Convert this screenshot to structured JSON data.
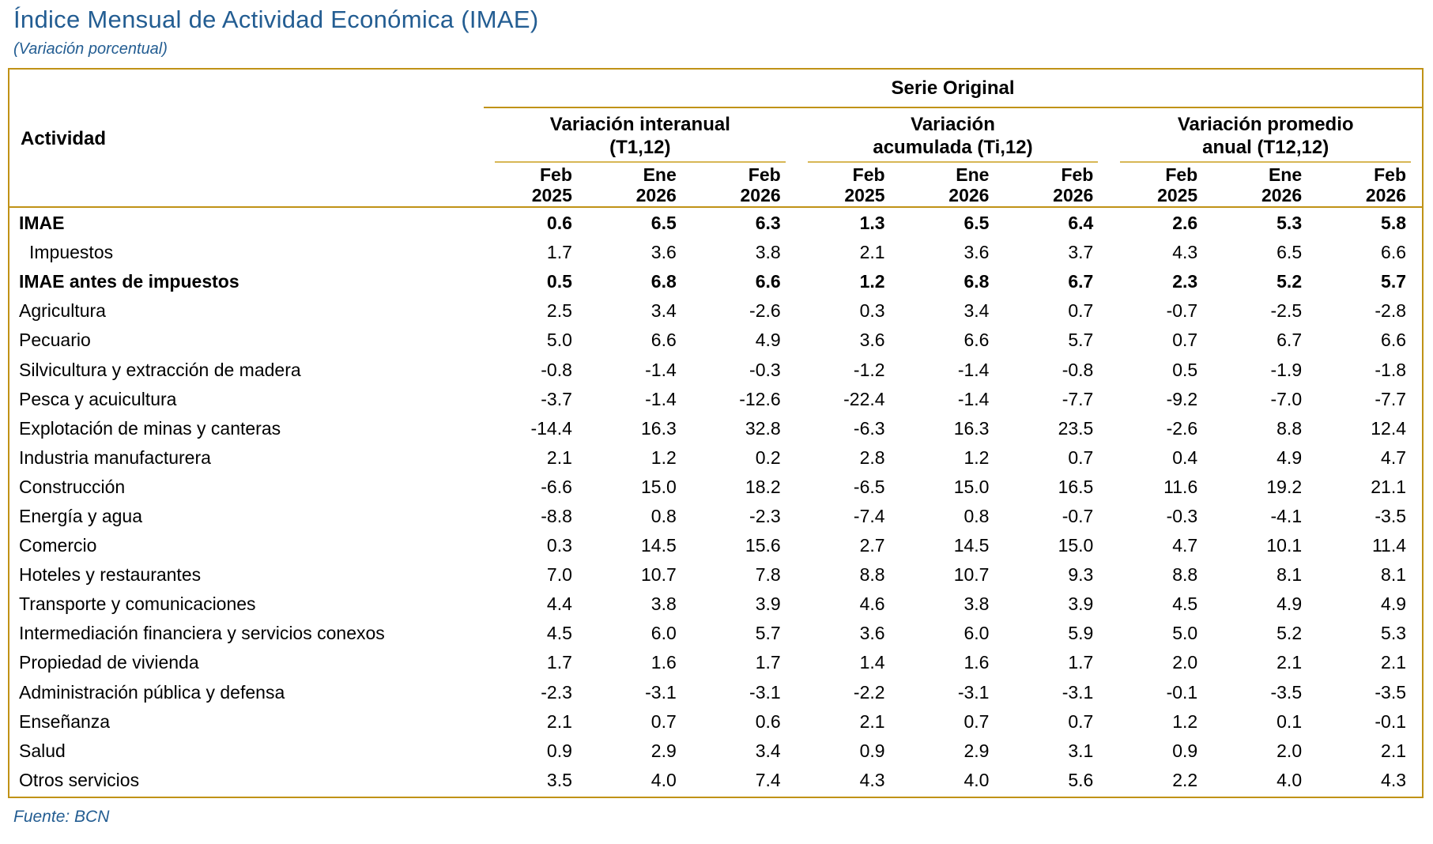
{
  "page": {
    "title": "Índice Mensual de Actividad Económica (IMAE)",
    "subtitle": "(Variación porcentual)",
    "source": "Fuente: BCN"
  },
  "colors": {
    "accent_blue": "#235D92",
    "border_gold": "#C09216",
    "rule_gold_light": "#D7B755"
  },
  "table": {
    "activity_header": "Actividad",
    "series_header": "Serie Original",
    "column_groups": [
      {
        "lines": [
          "Variación interanual",
          "(T1,12)"
        ]
      },
      {
        "lines": [
          "Variación",
          "acumulada (Ti,12)"
        ]
      },
      {
        "lines": [
          "Variación promedio",
          "anual (T12,12)"
        ]
      }
    ],
    "period_headers": [
      {
        "month": "Feb",
        "year": "2025"
      },
      {
        "month": "Ene",
        "year": "2026"
      },
      {
        "month": "Feb",
        "year": "2026"
      },
      {
        "month": "Feb",
        "year": "2025"
      },
      {
        "month": "Ene",
        "year": "2026"
      },
      {
        "month": "Feb",
        "year": "2026"
      },
      {
        "month": "Feb",
        "year": "2025"
      },
      {
        "month": "Ene",
        "year": "2026"
      },
      {
        "month": "Feb",
        "year": "2026"
      }
    ],
    "rows": [
      {
        "label": "IMAE",
        "bold": true,
        "indent": false,
        "values": [
          "0.6",
          "6.5",
          "6.3",
          "1.3",
          "6.5",
          "6.4",
          "2.6",
          "5.3",
          "5.8"
        ]
      },
      {
        "label": "Impuestos",
        "bold": false,
        "indent": true,
        "values": [
          "1.7",
          "3.6",
          "3.8",
          "2.1",
          "3.6",
          "3.7",
          "4.3",
          "6.5",
          "6.6"
        ]
      },
      {
        "label": "IMAE antes de impuestos",
        "bold": true,
        "indent": false,
        "values": [
          "0.5",
          "6.8",
          "6.6",
          "1.2",
          "6.8",
          "6.7",
          "2.3",
          "5.2",
          "5.7"
        ]
      },
      {
        "label": "Agricultura",
        "bold": false,
        "indent": false,
        "values": [
          "2.5",
          "3.4",
          "-2.6",
          "0.3",
          "3.4",
          "0.7",
          "-0.7",
          "-2.5",
          "-2.8"
        ]
      },
      {
        "label": "Pecuario",
        "bold": false,
        "indent": false,
        "values": [
          "5.0",
          "6.6",
          "4.9",
          "3.6",
          "6.6",
          "5.7",
          "0.7",
          "6.7",
          "6.6"
        ]
      },
      {
        "label": "Silvicultura y extracción de madera",
        "bold": false,
        "indent": false,
        "values": [
          "-0.8",
          "-1.4",
          "-0.3",
          "-1.2",
          "-1.4",
          "-0.8",
          "0.5",
          "-1.9",
          "-1.8"
        ]
      },
      {
        "label": "Pesca y acuicultura",
        "bold": false,
        "indent": false,
        "values": [
          "-3.7",
          "-1.4",
          "-12.6",
          "-22.4",
          "-1.4",
          "-7.7",
          "-9.2",
          "-7.0",
          "-7.7"
        ]
      },
      {
        "label": "Explotación de minas y canteras",
        "bold": false,
        "indent": false,
        "values": [
          "-14.4",
          "16.3",
          "32.8",
          "-6.3",
          "16.3",
          "23.5",
          "-2.6",
          "8.8",
          "12.4"
        ]
      },
      {
        "label": "Industria manufacturera",
        "bold": false,
        "indent": false,
        "values": [
          "2.1",
          "1.2",
          "0.2",
          "2.8",
          "1.2",
          "0.7",
          "0.4",
          "4.9",
          "4.7"
        ]
      },
      {
        "label": "Construcción",
        "bold": false,
        "indent": false,
        "values": [
          "-6.6",
          "15.0",
          "18.2",
          "-6.5",
          "15.0",
          "16.5",
          "11.6",
          "19.2",
          "21.1"
        ]
      },
      {
        "label": "Energía y agua",
        "bold": false,
        "indent": false,
        "values": [
          "-8.8",
          "0.8",
          "-2.3",
          "-7.4",
          "0.8",
          "-0.7",
          "-0.3",
          "-4.1",
          "-3.5"
        ]
      },
      {
        "label": "Comercio",
        "bold": false,
        "indent": false,
        "values": [
          "0.3",
          "14.5",
          "15.6",
          "2.7",
          "14.5",
          "15.0",
          "4.7",
          "10.1",
          "11.4"
        ]
      },
      {
        "label": "Hoteles y restaurantes",
        "bold": false,
        "indent": false,
        "values": [
          "7.0",
          "10.7",
          "7.8",
          "8.8",
          "10.7",
          "9.3",
          "8.8",
          "8.1",
          "8.1"
        ]
      },
      {
        "label": "Transporte y comunicaciones",
        "bold": false,
        "indent": false,
        "values": [
          "4.4",
          "3.8",
          "3.9",
          "4.6",
          "3.8",
          "3.9",
          "4.5",
          "4.9",
          "4.9"
        ]
      },
      {
        "label": "Intermediación financiera y servicios conexos",
        "bold": false,
        "indent": false,
        "values": [
          "4.5",
          "6.0",
          "5.7",
          "3.6",
          "6.0",
          "5.9",
          "5.0",
          "5.2",
          "5.3"
        ]
      },
      {
        "label": "Propiedad de vivienda",
        "bold": false,
        "indent": false,
        "values": [
          "1.7",
          "1.6",
          "1.7",
          "1.4",
          "1.6",
          "1.7",
          "2.0",
          "2.1",
          "2.1"
        ]
      },
      {
        "label": "Administración pública y defensa",
        "bold": false,
        "indent": false,
        "values": [
          "-2.3",
          "-3.1",
          "-3.1",
          "-2.2",
          "-3.1",
          "-3.1",
          "-0.1",
          "-3.5",
          "-3.5"
        ]
      },
      {
        "label": "Enseñanza",
        "bold": false,
        "indent": false,
        "values": [
          "2.1",
          "0.7",
          "0.6",
          "2.1",
          "0.7",
          "0.7",
          "1.2",
          "0.1",
          "-0.1"
        ]
      },
      {
        "label": "Salud",
        "bold": false,
        "indent": false,
        "values": [
          "0.9",
          "2.9",
          "3.4",
          "0.9",
          "2.9",
          "3.1",
          "0.9",
          "2.0",
          "2.1"
        ]
      },
      {
        "label": "Otros servicios",
        "bold": false,
        "indent": false,
        "values": [
          "3.5",
          "4.0",
          "7.4",
          "4.3",
          "4.0",
          "5.6",
          "2.2",
          "4.0",
          "4.3"
        ]
      }
    ]
  }
}
